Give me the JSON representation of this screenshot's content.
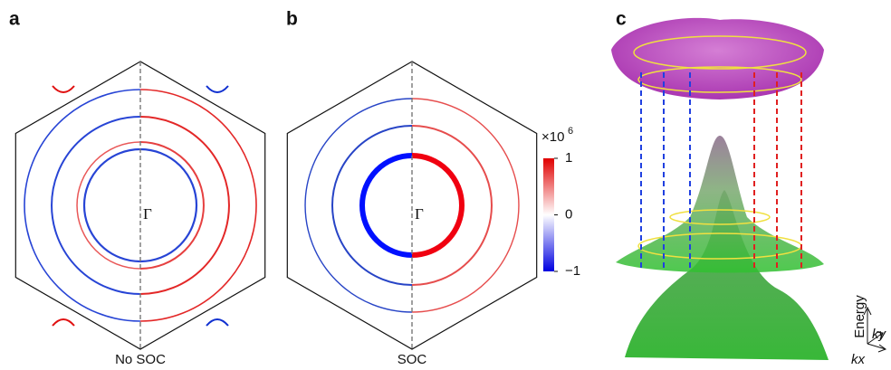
{
  "panels": [
    {
      "label": "a",
      "center_label": "Γ",
      "caption": "No SOC"
    },
    {
      "label": "b",
      "center_label": "Γ",
      "caption": "SOC"
    },
    {
      "label": "c"
    }
  ],
  "colorbar": {
    "multiplier": "×10",
    "exponent": "6",
    "ticks": [
      1,
      0,
      {
        "value": -1,
        "label": "−1"
      }
    ]
  },
  "axes_3d": {
    "energy": "Energy",
    "ky": "ky",
    "kx": "kx"
  }
}
